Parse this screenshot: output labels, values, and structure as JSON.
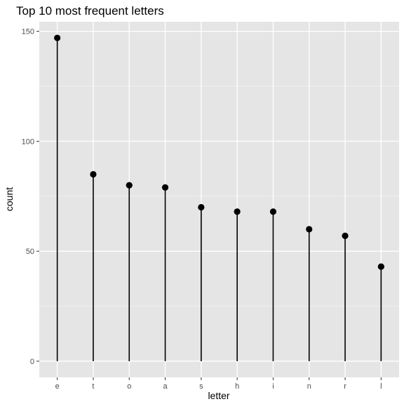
{
  "chart_data": {
    "type": "lollipop",
    "title": "Top 10 most frequent letters",
    "xlabel": "letter",
    "ylabel": "count",
    "categories": [
      "e",
      "t",
      "o",
      "a",
      "s",
      "h",
      "i",
      "n",
      "r",
      "l"
    ],
    "values": [
      147,
      85,
      80,
      79,
      70,
      68,
      68,
      60,
      57,
      43
    ],
    "yticks": [
      0,
      50,
      100,
      150
    ],
    "ylim": [
      -7.35,
      154.35
    ],
    "grid": true,
    "legend": "none",
    "colors": {
      "panel_background": "#e5e5e5",
      "grid_major": "#ffffff",
      "grid_minor": "#f2f2f2",
      "mark": "#000000",
      "tick": "#333333"
    }
  }
}
